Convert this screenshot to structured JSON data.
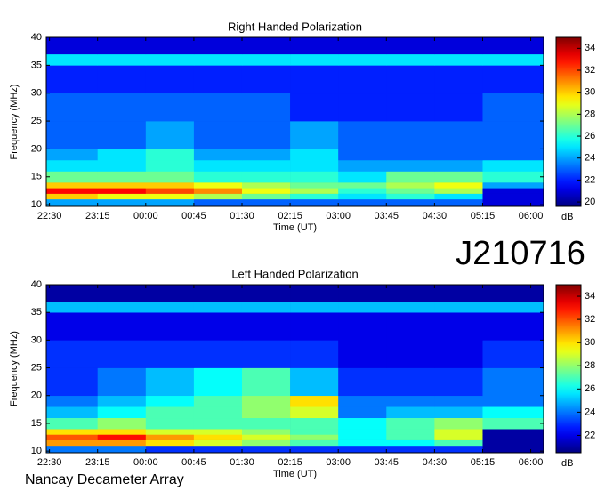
{
  "station": "J210716",
  "footer": "Nancay Decameter Array",
  "chart_data": [
    {
      "type": "heatmap",
      "title": "Right Handed Polarization",
      "xlabel": "Time (UT)",
      "ylabel": "Frequency (MHz)",
      "colormap": "jet",
      "xlim": [
        22.45,
        30.2
      ],
      "ylim": [
        9.7,
        40
      ],
      "xticks": [
        {
          "value": 22.5,
          "label": "22:30"
        },
        {
          "value": 23.25,
          "label": "23:15"
        },
        {
          "value": 24,
          "label": "00:00"
        },
        {
          "value": 24.75,
          "label": "00:45"
        },
        {
          "value": 25.5,
          "label": "01:30"
        },
        {
          "value": 26.25,
          "label": "02:15"
        },
        {
          "value": 27,
          "label": "03:00"
        },
        {
          "value": 27.75,
          "label": "03:45"
        },
        {
          "value": 28.5,
          "label": "04:30"
        },
        {
          "value": 29.25,
          "label": "05:15"
        },
        {
          "value": 30,
          "label": "06:00"
        }
      ],
      "yticks": [
        10,
        15,
        20,
        25,
        30,
        35,
        40
      ],
      "x_edges": [
        22.45,
        23.25,
        24,
        24.75,
        25.5,
        26.25,
        27,
        27.75,
        28.5,
        29.25,
        30.2
      ],
      "y_edges": [
        9.7,
        11,
        12,
        13,
        14,
        16,
        18,
        20,
        25,
        30,
        35,
        37,
        40
      ],
      "values": [
        [
          24,
          24,
          24,
          23,
          23,
          23,
          23,
          23,
          23,
          21
        ],
        [
          30,
          29,
          29,
          28,
          27,
          26,
          25,
          26,
          25,
          21
        ],
        [
          33,
          33,
          32,
          31,
          29,
          28,
          26,
          27,
          28,
          21
        ],
        [
          30,
          30,
          30,
          29,
          28,
          27,
          27,
          28,
          29,
          24
        ],
        [
          27,
          27,
          27,
          26,
          26,
          26,
          25,
          27,
          27,
          26
        ],
        [
          25,
          25,
          26,
          25,
          25,
          25,
          24,
          24,
          24,
          25
        ],
        [
          24,
          25,
          26,
          24,
          24,
          25,
          23,
          23,
          23,
          23
        ],
        [
          23,
          23,
          24,
          23,
          23,
          24,
          23,
          23,
          23,
          23
        ],
        [
          23,
          23,
          23,
          23,
          23,
          22,
          22,
          22,
          22,
          23
        ],
        [
          22,
          22,
          22,
          22,
          22,
          22,
          22,
          22,
          22,
          22
        ],
        [
          25,
          25,
          25,
          25,
          25,
          25,
          25,
          25,
          25,
          25
        ],
        [
          21,
          21,
          21,
          21,
          21,
          21,
          21,
          21,
          21,
          21
        ]
      ],
      "colorbar": {
        "label": "dB",
        "lim": [
          19.6,
          35
        ],
        "ticks": [
          20,
          22,
          24,
          26,
          28,
          30,
          32,
          34
        ]
      }
    },
    {
      "type": "heatmap",
      "title": "Left Handed Polarization",
      "xlabel": "Time (UT)",
      "ylabel": "Frequency (MHz)",
      "colormap": "jet",
      "xlim": [
        22.45,
        30.2
      ],
      "ylim": [
        9.7,
        40
      ],
      "xticks": [
        {
          "value": 22.5,
          "label": "22:30"
        },
        {
          "value": 23.25,
          "label": "23:15"
        },
        {
          "value": 24,
          "label": "00:00"
        },
        {
          "value": 24.75,
          "label": "00:45"
        },
        {
          "value": 25.5,
          "label": "01:30"
        },
        {
          "value": 26.25,
          "label": "02:15"
        },
        {
          "value": 27,
          "label": "03:00"
        },
        {
          "value": 27.75,
          "label": "03:45"
        },
        {
          "value": 28.5,
          "label": "04:30"
        },
        {
          "value": 29.25,
          "label": "05:15"
        },
        {
          "value": 30,
          "label": "06:00"
        }
      ],
      "yticks": [
        10,
        15,
        20,
        25,
        30,
        35,
        40
      ],
      "x_edges": [
        22.45,
        23.25,
        24,
        24.75,
        25.5,
        26.25,
        27,
        27.75,
        28.5,
        29.25,
        30.2
      ],
      "y_edges": [
        9.7,
        11,
        12,
        13,
        14,
        16,
        18,
        20,
        25,
        30,
        35,
        37,
        40
      ],
      "values": [
        [
          24,
          24,
          23,
          23,
          23,
          23,
          23,
          23,
          23,
          21
        ],
        [
          31,
          31,
          30,
          29,
          28,
          27,
          26,
          26,
          27,
          21
        ],
        [
          32,
          33,
          31,
          30,
          29,
          28,
          26,
          27,
          29,
          21
        ],
        [
          30,
          30,
          29,
          29,
          28,
          27,
          26,
          27,
          29,
          21
        ],
        [
          27,
          28,
          27,
          27,
          27,
          27,
          26,
          27,
          28,
          27
        ],
        [
          25,
          26,
          27,
          27,
          28,
          29,
          24,
          25,
          25,
          26
        ],
        [
          24,
          25,
          26,
          27,
          28,
          30,
          24,
          24,
          24,
          24
        ],
        [
          23,
          24,
          25,
          26,
          27,
          25,
          23,
          23,
          23,
          24
        ],
        [
          23,
          23,
          23,
          23,
          23,
          23,
          22,
          22,
          22,
          23
        ],
        [
          22,
          22,
          22,
          22,
          22,
          22,
          22,
          22,
          22,
          22
        ],
        [
          25,
          25,
          25,
          25,
          25,
          25,
          25,
          25,
          25,
          25
        ],
        [
          21,
          21,
          21,
          21,
          21,
          21,
          21,
          21,
          21,
          21
        ]
      ],
      "colorbar": {
        "label": "dB",
        "lim": [
          20.5,
          35
        ],
        "ticks": [
          22,
          24,
          26,
          28,
          30,
          32,
          34
        ]
      }
    }
  ]
}
